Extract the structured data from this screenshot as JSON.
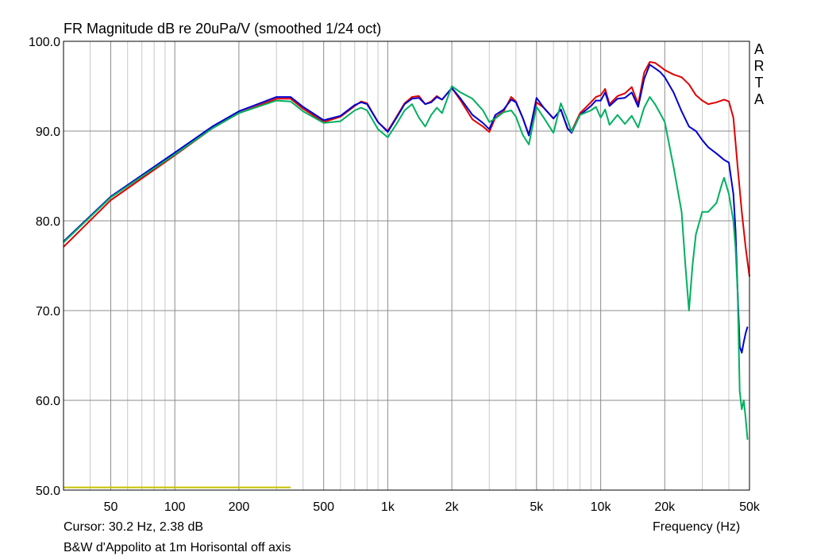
{
  "title": "FR Magnitude dB re 20uPa/V (smoothed 1/24 oct)",
  "cursor": "Cursor: 30.2 Hz, 2.38 dB",
  "caption": "B&W d'Appolito at 1m Horisontal off axis",
  "watermark": [
    "A",
    "R",
    "T",
    "A"
  ],
  "chart_data": {
    "type": "line",
    "title": "FR Magnitude dB re 20uPa/V (smoothed 1/24 oct)",
    "xlabel": "Frequency (Hz)",
    "ylabel": "",
    "xscale": "log",
    "xlim": [
      30,
      50000
    ],
    "ylim": [
      50,
      100
    ],
    "grid": true,
    "x_ticks": [
      {
        "v": 50,
        "label": "50"
      },
      {
        "v": 100,
        "label": "100"
      },
      {
        "v": 200,
        "label": "200"
      },
      {
        "v": 500,
        "label": "500"
      },
      {
        "v": 1000,
        "label": "1k"
      },
      {
        "v": 2000,
        "label": "2k"
      },
      {
        "v": 5000,
        "label": "5k"
      },
      {
        "v": 10000,
        "label": "10k"
      },
      {
        "v": 20000,
        "label": "20k"
      },
      {
        "v": 50000,
        "label": "50k"
      }
    ],
    "y_ticks": [
      {
        "v": 50,
        "label": "50.0"
      },
      {
        "v": 60,
        "label": "60.0"
      },
      {
        "v": 70,
        "label": "70.0"
      },
      {
        "v": 80,
        "label": "80.0"
      },
      {
        "v": 90,
        "label": "90.0"
      },
      {
        "v": 100,
        "label": "100.0"
      }
    ],
    "series": [
      {
        "color": "#e00000",
        "points": [
          [
            30,
            77.1
          ],
          [
            50,
            82.3
          ],
          [
            100,
            87.3
          ],
          [
            150,
            90.3
          ],
          [
            200,
            92.0
          ],
          [
            300,
            93.6
          ],
          [
            350,
            93.6
          ],
          [
            400,
            92.5
          ],
          [
            500,
            91.0
          ],
          [
            600,
            91.6
          ],
          [
            700,
            92.8
          ],
          [
            750,
            93.3
          ],
          [
            800,
            93.1
          ],
          [
            900,
            91.0
          ],
          [
            1000,
            90.0
          ],
          [
            1100,
            91.6
          ],
          [
            1200,
            93.1
          ],
          [
            1300,
            93.8
          ],
          [
            1400,
            93.9
          ],
          [
            1500,
            93.0
          ],
          [
            1600,
            93.3
          ],
          [
            1700,
            93.9
          ],
          [
            1800,
            93.5
          ],
          [
            2000,
            94.8
          ],
          [
            2200,
            93.4
          ],
          [
            2500,
            91.3
          ],
          [
            2800,
            90.5
          ],
          [
            3000,
            89.9
          ],
          [
            3200,
            91.5
          ],
          [
            3500,
            92.2
          ],
          [
            3800,
            93.8
          ],
          [
            4000,
            93.3
          ],
          [
            4300,
            91.5
          ],
          [
            4600,
            89.6
          ],
          [
            5000,
            93.2
          ],
          [
            5400,
            92.6
          ],
          [
            6000,
            91.4
          ],
          [
            6500,
            92.4
          ],
          [
            7000,
            90.2
          ],
          [
            7300,
            90.0
          ],
          [
            8000,
            92.0
          ],
          [
            9000,
            93.2
          ],
          [
            9500,
            93.8
          ],
          [
            10000,
            94.0
          ],
          [
            10500,
            94.7
          ],
          [
            11000,
            93.0
          ],
          [
            12000,
            93.9
          ],
          [
            13000,
            94.2
          ],
          [
            14000,
            94.9
          ],
          [
            15000,
            93.0
          ],
          [
            16000,
            96.5
          ],
          [
            17000,
            97.7
          ],
          [
            18000,
            97.6
          ],
          [
            19000,
            97.2
          ],
          [
            20000,
            96.8
          ],
          [
            22000,
            96.3
          ],
          [
            24000,
            96.0
          ],
          [
            26000,
            95.2
          ],
          [
            28000,
            94.0
          ],
          [
            30000,
            93.4
          ],
          [
            32000,
            93.0
          ],
          [
            35000,
            93.2
          ],
          [
            38000,
            93.5
          ],
          [
            40000,
            93.3
          ],
          [
            42000,
            91.5
          ],
          [
            44000,
            86.0
          ],
          [
            46000,
            81.0
          ],
          [
            48000,
            77.0
          ],
          [
            50000,
            73.8
          ]
        ]
      },
      {
        "color": "#0000d0",
        "points": [
          [
            30,
            77.7
          ],
          [
            50,
            82.7
          ],
          [
            100,
            87.6
          ],
          [
            150,
            90.5
          ],
          [
            200,
            92.2
          ],
          [
            300,
            93.8
          ],
          [
            350,
            93.8
          ],
          [
            400,
            92.7
          ],
          [
            500,
            91.2
          ],
          [
            600,
            91.7
          ],
          [
            700,
            92.9
          ],
          [
            750,
            93.2
          ],
          [
            800,
            93.0
          ],
          [
            900,
            91.0
          ],
          [
            1000,
            89.9
          ],
          [
            1100,
            91.5
          ],
          [
            1200,
            93.0
          ],
          [
            1300,
            93.6
          ],
          [
            1400,
            93.7
          ],
          [
            1500,
            93.0
          ],
          [
            1600,
            93.2
          ],
          [
            1700,
            93.8
          ],
          [
            1800,
            93.5
          ],
          [
            2000,
            94.8
          ],
          [
            2200,
            93.6
          ],
          [
            2500,
            91.8
          ],
          [
            2800,
            90.9
          ],
          [
            3000,
            90.2
          ],
          [
            3200,
            91.8
          ],
          [
            3500,
            92.4
          ],
          [
            3800,
            93.5
          ],
          [
            4000,
            93.2
          ],
          [
            4300,
            91.5
          ],
          [
            4600,
            89.5
          ],
          [
            5000,
            93.7
          ],
          [
            5400,
            92.6
          ],
          [
            6000,
            91.4
          ],
          [
            6500,
            92.4
          ],
          [
            7000,
            90.3
          ],
          [
            7300,
            89.8
          ],
          [
            8000,
            91.8
          ],
          [
            9000,
            92.8
          ],
          [
            9500,
            93.4
          ],
          [
            10000,
            93.4
          ],
          [
            10500,
            94.3
          ],
          [
            11000,
            92.8
          ],
          [
            12000,
            93.6
          ],
          [
            13000,
            93.7
          ],
          [
            14000,
            94.3
          ],
          [
            15000,
            92.7
          ],
          [
            16000,
            95.8
          ],
          [
            17000,
            97.4
          ],
          [
            18000,
            97.0
          ],
          [
            19000,
            96.6
          ],
          [
            20000,
            96.0
          ],
          [
            22000,
            94.3
          ],
          [
            24000,
            92.2
          ],
          [
            26000,
            90.5
          ],
          [
            28000,
            90.0
          ],
          [
            30000,
            89.0
          ],
          [
            32000,
            88.2
          ],
          [
            35000,
            87.5
          ],
          [
            38000,
            86.8
          ],
          [
            40000,
            86.5
          ],
          [
            42000,
            83.0
          ],
          [
            43000,
            79.0
          ],
          [
            44000,
            72.0
          ],
          [
            45000,
            66.0
          ],
          [
            46000,
            65.3
          ],
          [
            47000,
            66.5
          ],
          [
            48000,
            67.5
          ],
          [
            49000,
            68.2
          ]
        ]
      },
      {
        "color": "#00b060",
        "points": [
          [
            30,
            77.6
          ],
          [
            50,
            82.6
          ],
          [
            100,
            87.4
          ],
          [
            150,
            90.3
          ],
          [
            200,
            92.0
          ],
          [
            300,
            93.4
          ],
          [
            350,
            93.3
          ],
          [
            400,
            92.2
          ],
          [
            500,
            90.9
          ],
          [
            600,
            91.1
          ],
          [
            700,
            92.3
          ],
          [
            750,
            92.6
          ],
          [
            800,
            92.3
          ],
          [
            900,
            90.2
          ],
          [
            1000,
            89.3
          ],
          [
            1100,
            90.8
          ],
          [
            1200,
            92.3
          ],
          [
            1300,
            93.0
          ],
          [
            1400,
            91.5
          ],
          [
            1500,
            90.5
          ],
          [
            1600,
            91.8
          ],
          [
            1700,
            92.6
          ],
          [
            1800,
            92.0
          ],
          [
            2000,
            95.0
          ],
          [
            2200,
            94.3
          ],
          [
            2500,
            93.6
          ],
          [
            2800,
            92.3
          ],
          [
            3000,
            91.0
          ],
          [
            3200,
            91.4
          ],
          [
            3500,
            92.1
          ],
          [
            3800,
            92.3
          ],
          [
            4000,
            91.6
          ],
          [
            4300,
            89.6
          ],
          [
            4600,
            88.5
          ],
          [
            5000,
            92.7
          ],
          [
            5400,
            91.5
          ],
          [
            6000,
            89.8
          ],
          [
            6500,
            93.1
          ],
          [
            7000,
            91.2
          ],
          [
            7300,
            89.9
          ],
          [
            8000,
            91.8
          ],
          [
            9000,
            92.3
          ],
          [
            9500,
            92.7
          ],
          [
            10000,
            91.5
          ],
          [
            10500,
            92.4
          ],
          [
            11000,
            90.7
          ],
          [
            12000,
            91.8
          ],
          [
            13000,
            90.8
          ],
          [
            14000,
            91.7
          ],
          [
            15000,
            90.4
          ],
          [
            16000,
            92.6
          ],
          [
            17000,
            93.8
          ],
          [
            18000,
            93.0
          ],
          [
            19000,
            92.0
          ],
          [
            20000,
            91.0
          ],
          [
            22000,
            86.0
          ],
          [
            24000,
            81.0
          ],
          [
            25000,
            75.0
          ],
          [
            26000,
            70.0
          ],
          [
            27000,
            75.0
          ],
          [
            28000,
            78.5
          ],
          [
            30000,
            81.0
          ],
          [
            32000,
            81.0
          ],
          [
            35000,
            82.0
          ],
          [
            37000,
            84.0
          ],
          [
            38000,
            84.8
          ],
          [
            40000,
            83.0
          ],
          [
            42000,
            80.0
          ],
          [
            43000,
            77.0
          ],
          [
            44000,
            72.0
          ],
          [
            45000,
            61.0
          ],
          [
            46000,
            59.0
          ],
          [
            47000,
            60.0
          ],
          [
            48000,
            58.0
          ],
          [
            49000,
            55.6
          ]
        ]
      },
      {
        "color": "#c8c000",
        "points": [
          [
            30,
            50.3
          ],
          [
            350,
            50.3
          ]
        ]
      }
    ]
  }
}
